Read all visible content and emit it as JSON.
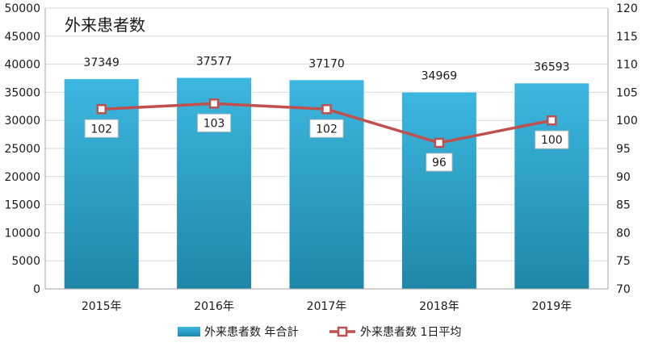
{
  "chart_data": {
    "type": "bar",
    "title": "外来患者数",
    "categories": [
      "2015年",
      "2016年",
      "2017年",
      "2018年",
      "2019年"
    ],
    "series": [
      {
        "name": "外来患者数 年合計",
        "type": "bar",
        "axis": "left",
        "values": [
          37349,
          37577,
          37170,
          34969,
          36593
        ],
        "color": "#2E9CC6"
      },
      {
        "name": "外来患者数 1日平均",
        "type": "line",
        "axis": "right",
        "values": [
          102,
          103,
          102,
          96,
          100
        ],
        "color": "#C0504D"
      }
    ],
    "ylim_left": [
      0,
      50000
    ],
    "yticks_left": [
      0,
      5000,
      10000,
      15000,
      20000,
      25000,
      30000,
      35000,
      40000,
      45000,
      50000
    ],
    "ylim_right": [
      70,
      120
    ],
    "yticks_right": [
      70,
      75,
      80,
      85,
      90,
      95,
      100,
      105,
      110,
      115,
      120
    ],
    "grid": true,
    "legend": "bottom"
  }
}
